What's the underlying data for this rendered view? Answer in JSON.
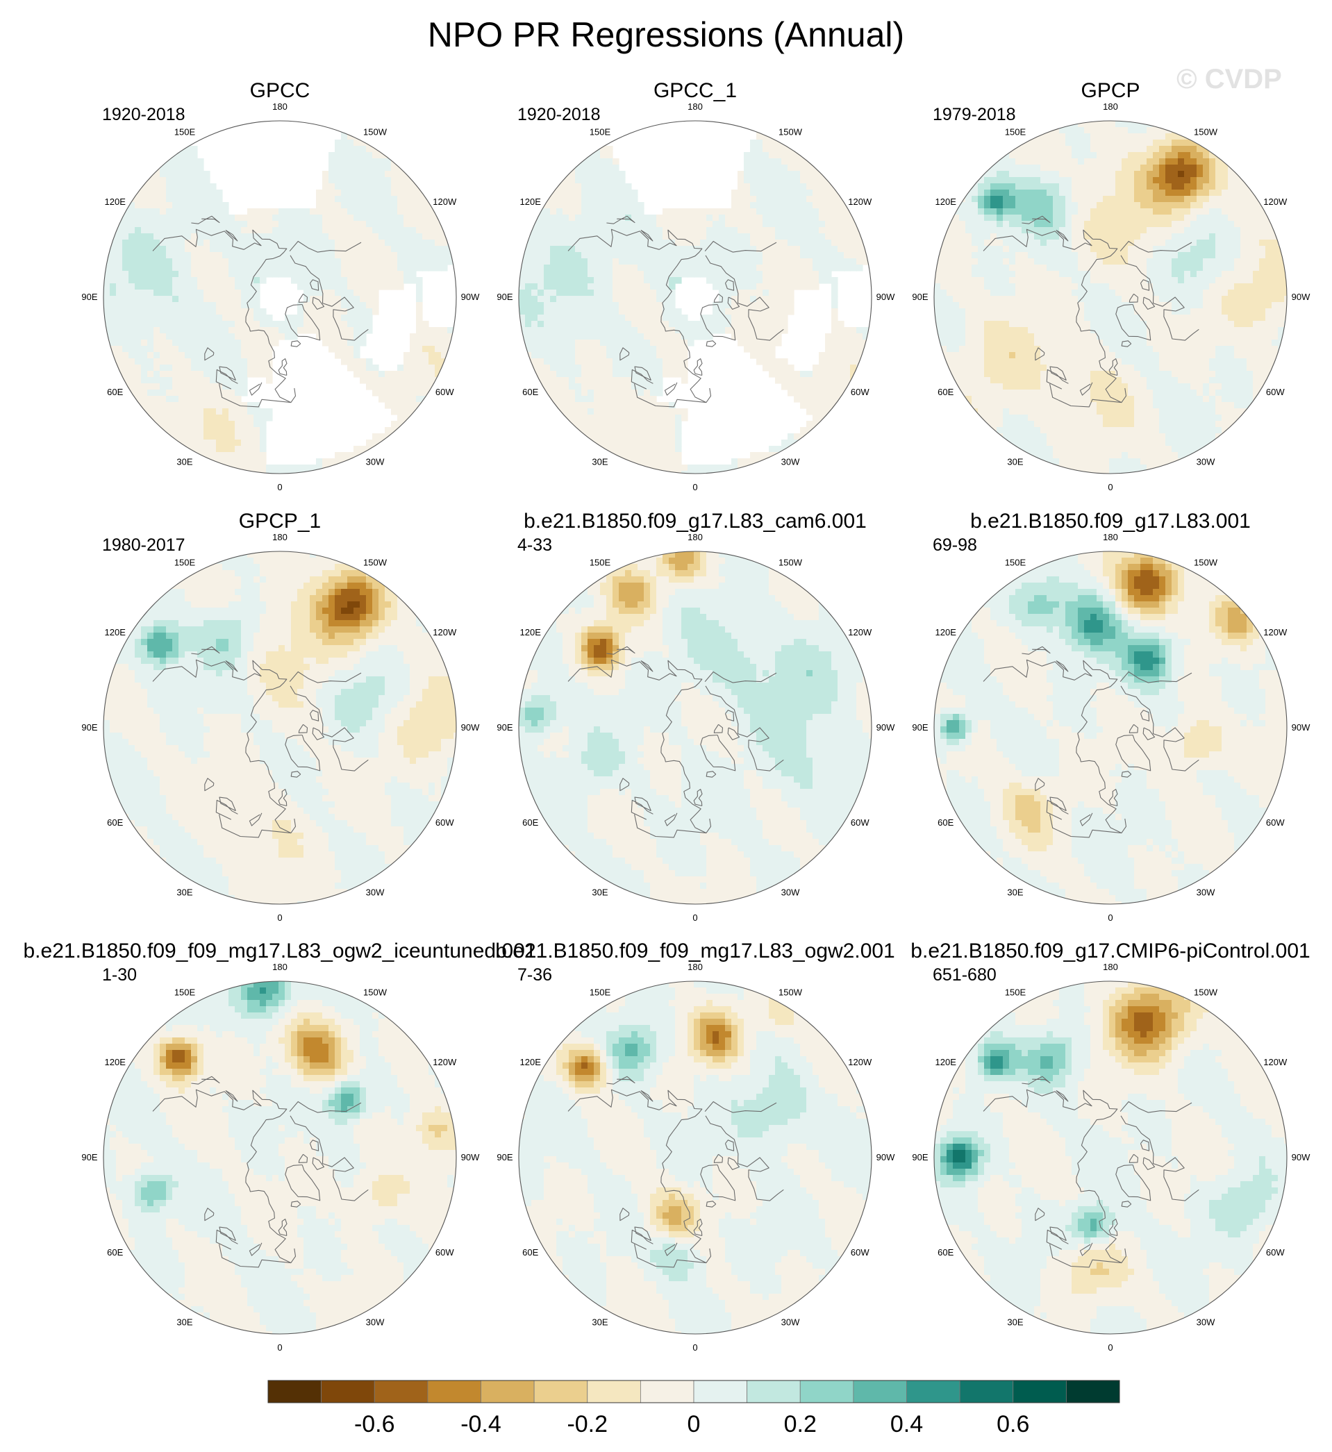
{
  "title": "NPO PR Regressions (Annual)",
  "watermark": "© CVDP",
  "chart_data": {
    "type": "heatmap",
    "projection": "north polar stereographic",
    "title": "NPO PR Regressions (Annual)",
    "panels": [
      {
        "name": "GPCC",
        "period": "1920-2018",
        "land_only": true
      },
      {
        "name": "GPCC_1",
        "period": "1920-2018",
        "land_only": true
      },
      {
        "name": "GPCP",
        "period": "1979-2018",
        "land_only": false
      },
      {
        "name": "GPCP_1",
        "period": "1980-2017",
        "land_only": false
      },
      {
        "name": "b.e21.B1850.f09_g17.L83_cam6.001",
        "period": "4-33",
        "land_only": false
      },
      {
        "name": "b.e21.B1850.f09_g17.L83.001",
        "period": "69-98",
        "land_only": false
      },
      {
        "name": "b.e21.B1850.f09_f09_mg17.L83_ogw2_iceuntuned.001",
        "period": "1-30",
        "land_only": false
      },
      {
        "name": "b.e21.B1850.f09_f09_mg17.L83_ogw2.001",
        "period": "7-36",
        "land_only": false
      },
      {
        "name": "b.e21.B1850.f09_g17.CMIP6-piControl.001",
        "period": "651-680",
        "land_only": false
      }
    ],
    "longitude_labels": [
      "180",
      "150E",
      "120E",
      "90E",
      "60E",
      "30E",
      "0",
      "30W",
      "60W",
      "90W",
      "120W",
      "150W"
    ],
    "colorbar": {
      "levels": [
        -0.7,
        -0.6,
        -0.5,
        -0.4,
        -0.3,
        -0.2,
        -0.1,
        0,
        0.1,
        0.2,
        0.3,
        0.4,
        0.5,
        0.6,
        0.7
      ],
      "tick_labels": [
        "-0.6",
        "-0.4",
        "-0.2",
        "0",
        "0.2",
        "0.4",
        "0.6"
      ],
      "tick_values": [
        -0.6,
        -0.4,
        -0.2,
        0,
        0.2,
        0.4,
        0.6
      ],
      "colors": [
        "#543005",
        "#7f470a",
        "#a0631a",
        "#c2882e",
        "#d9b060",
        "#ebcf8e",
        "#f5e7c0",
        "#f6f1e6",
        "#e5f2f0",
        "#c2e8e0",
        "#90d5c8",
        "#5fb8aa",
        "#2f968b",
        "#12766b",
        "#005c4f",
        "#003b30"
      ]
    },
    "features": [
      [
        {
          "lon": 170,
          "r": 0.15,
          "v": 0.05,
          "s": 0.15
        },
        {
          "lon": 100,
          "r": 0.75,
          "v": 0.1,
          "s": 0.25
        },
        {
          "lon": -60,
          "r": 0.8,
          "v": -0.05,
          "s": 0.2
        },
        {
          "lon": 30,
          "r": 0.85,
          "v": -0.08,
          "s": 0.2
        }
      ],
      [
        {
          "lon": 170,
          "r": 0.15,
          "v": 0.05,
          "s": 0.15
        },
        {
          "lon": 100,
          "r": 0.75,
          "v": 0.1,
          "s": 0.25
        },
        {
          "lon": -60,
          "r": 0.8,
          "v": -0.05,
          "s": 0.2
        },
        {
          "lon": 30,
          "r": 0.85,
          "v": -0.08,
          "s": 0.2
        }
      ],
      [
        {
          "lon": -150,
          "r": 0.8,
          "v": -0.55,
          "s": 0.12
        },
        {
          "lon": -165,
          "r": 0.55,
          "v": -0.15,
          "s": 0.25
        },
        {
          "lon": 130,
          "r": 0.85,
          "v": 0.45,
          "s": 0.08
        },
        {
          "lon": 145,
          "r": 0.65,
          "v": 0.25,
          "s": 0.12
        },
        {
          "lon": -115,
          "r": 0.5,
          "v": 0.15,
          "s": 0.15
        },
        {
          "lon": -90,
          "r": 0.85,
          "v": -0.2,
          "s": 0.15
        },
        {
          "lon": 60,
          "r": 0.7,
          "v": -0.15,
          "s": 0.2
        },
        {
          "lon": 10,
          "r": 0.6,
          "v": -0.1,
          "s": 0.2
        }
      ],
      [
        {
          "lon": -150,
          "r": 0.8,
          "v": -0.55,
          "s": 0.12
        },
        {
          "lon": -165,
          "r": 0.55,
          "v": -0.15,
          "s": 0.25
        },
        {
          "lon": 125,
          "r": 0.82,
          "v": 0.45,
          "s": 0.08
        },
        {
          "lon": 150,
          "r": 0.6,
          "v": 0.25,
          "s": 0.12
        },
        {
          "lon": -110,
          "r": 0.5,
          "v": 0.15,
          "s": 0.15
        },
        {
          "lon": -90,
          "r": 0.85,
          "v": -0.2,
          "s": 0.15
        },
        {
          "lon": 10,
          "r": 0.6,
          "v": -0.1,
          "s": 0.2
        }
      ],
      [
        {
          "lon": 155,
          "r": 0.85,
          "v": -0.35,
          "s": 0.1
        },
        {
          "lon": 130,
          "r": 0.7,
          "v": -0.55,
          "s": 0.08
        },
        {
          "lon": 175,
          "r": 0.95,
          "v": -0.35,
          "s": 0.08
        },
        {
          "lon": 95,
          "r": 0.9,
          "v": 0.35,
          "s": 0.08
        },
        {
          "lon": -115,
          "r": 0.7,
          "v": 0.15,
          "s": 0.2
        },
        {
          "lon": 70,
          "r": 0.6,
          "v": 0.15,
          "s": 0.12
        },
        {
          "lon": -70,
          "r": 0.6,
          "v": 0.1,
          "s": 0.2
        },
        {
          "lon": -160,
          "r": 0.45,
          "v": 0.12,
          "s": 0.2
        }
      ],
      [
        {
          "lon": -165,
          "r": 0.85,
          "v": -0.6,
          "s": 0.12
        },
        {
          "lon": -130,
          "r": 0.95,
          "v": -0.35,
          "s": 0.1
        },
        {
          "lon": 170,
          "r": 0.6,
          "v": 0.4,
          "s": 0.12
        },
        {
          "lon": -150,
          "r": 0.45,
          "v": 0.45,
          "s": 0.1
        },
        {
          "lon": 90,
          "r": 0.88,
          "v": 0.45,
          "s": 0.06
        },
        {
          "lon": 150,
          "r": 0.8,
          "v": 0.25,
          "s": 0.1
        },
        {
          "lon": -80,
          "r": 0.5,
          "v": -0.25,
          "s": 0.1
        },
        {
          "lon": 45,
          "r": 0.65,
          "v": -0.2,
          "s": 0.12
        }
      ],
      [
        {
          "lon": -160,
          "r": 0.65,
          "v": -0.45,
          "s": 0.12
        },
        {
          "lon": 135,
          "r": 0.8,
          "v": -0.6,
          "s": 0.08
        },
        {
          "lon": 175,
          "r": 0.95,
          "v": 0.45,
          "s": 0.1
        },
        {
          "lon": -130,
          "r": 0.5,
          "v": 0.45,
          "s": 0.08
        },
        {
          "lon": 75,
          "r": 0.75,
          "v": 0.35,
          "s": 0.08
        },
        {
          "lon": -70,
          "r": 0.6,
          "v": -0.2,
          "s": 0.1
        },
        {
          "lon": -100,
          "r": 0.9,
          "v": -0.25,
          "s": 0.1
        }
      ],
      [
        {
          "lon": -170,
          "r": 0.7,
          "v": -0.45,
          "s": 0.1
        },
        {
          "lon": 130,
          "r": 0.8,
          "v": -0.5,
          "s": 0.08
        },
        {
          "lon": 150,
          "r": 0.7,
          "v": 0.3,
          "s": 0.1
        },
        {
          "lon": -120,
          "r": 0.5,
          "v": 0.2,
          "s": 0.15
        },
        {
          "lon": 20,
          "r": 0.35,
          "v": -0.3,
          "s": 0.1
        },
        {
          "lon": 10,
          "r": 0.55,
          "v": 0.2,
          "s": 0.1
        },
        {
          "lon": -150,
          "r": 0.95,
          "v": -0.15,
          "s": 0.1
        }
      ],
      [
        {
          "lon": -165,
          "r": 0.8,
          "v": -0.55,
          "s": 0.15
        },
        {
          "lon": 130,
          "r": 0.85,
          "v": 0.45,
          "s": 0.08
        },
        {
          "lon": 150,
          "r": 0.65,
          "v": 0.3,
          "s": 0.1
        },
        {
          "lon": 90,
          "r": 0.85,
          "v": 0.55,
          "s": 0.08
        },
        {
          "lon": 15,
          "r": 0.4,
          "v": 0.4,
          "s": 0.08
        },
        {
          "lon": 10,
          "r": 0.65,
          "v": -0.2,
          "s": 0.12
        },
        {
          "lon": -70,
          "r": 0.8,
          "v": 0.2,
          "s": 0.12
        }
      ]
    ]
  }
}
